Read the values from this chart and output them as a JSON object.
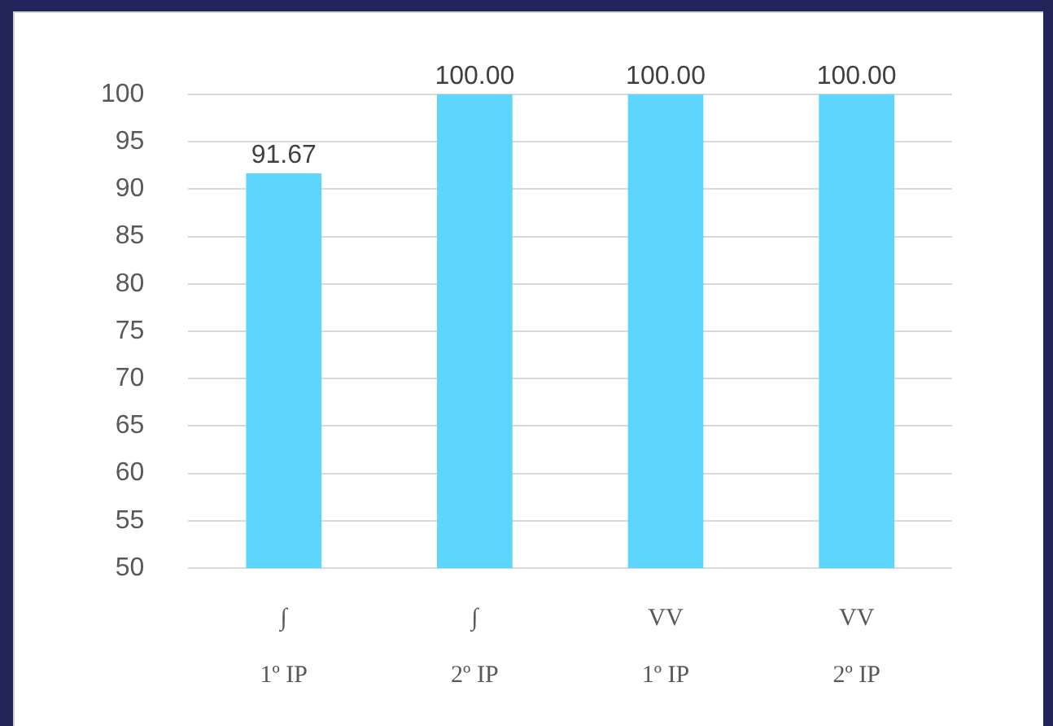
{
  "chart_data": {
    "type": "bar",
    "categories": [
      "∫\n1º IP",
      "∫\n2º IP",
      "VV\n1º IP",
      "VV\n2º IP"
    ],
    "values": [
      91.67,
      100,
      100,
      100
    ],
    "color": "#5dd5fd",
    "value_labels": [
      "91.67",
      "100.00",
      "100.00",
      "100.00"
    ],
    "ylim": [
      50,
      100
    ],
    "yticks": [
      50,
      55,
      60,
      65,
      70,
      75,
      80,
      85,
      90,
      95,
      100
    ],
    "grid": "y"
  }
}
